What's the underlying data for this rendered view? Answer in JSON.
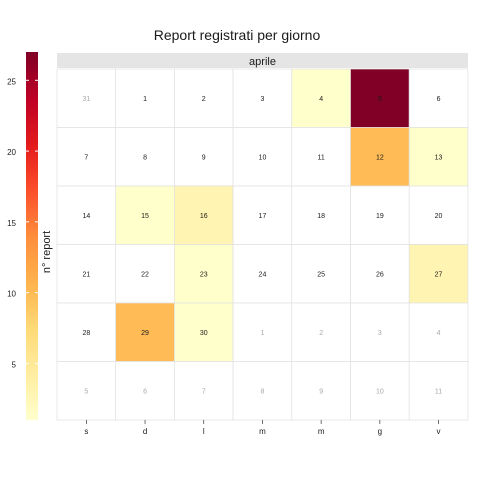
{
  "chart_data": {
    "type": "heatmap",
    "title": "Report registrati per giorno",
    "month_strip": "aprile",
    "weekday_labels": [
      "s",
      "d",
      "l",
      "m",
      "m",
      "g",
      "v"
    ],
    "color_scale": {
      "title": "n° report",
      "min": 1,
      "max": 27,
      "ticks": [
        5,
        10,
        15,
        20,
        25
      ],
      "colors": [
        "#ffffcc",
        "#ffeda0",
        "#fed976",
        "#feb24c",
        "#fd8d3c",
        "#fc4e2a",
        "#e31a1c",
        "#bd0026",
        "#800026"
      ]
    },
    "colors": {
      "no_report": "#ffffff",
      "grid": "#e0e0e0",
      "strip_bg": "#e5e5e5",
      "in_month_text": "#1a1a1a",
      "out_month_text": "#a8a8a8"
    },
    "weeks": [
      [
        {
          "day": "31",
          "in_month": false,
          "value": null
        },
        {
          "day": "1",
          "in_month": true,
          "value": null
        },
        {
          "day": "2",
          "in_month": true,
          "value": null
        },
        {
          "day": "3",
          "in_month": true,
          "value": null
        },
        {
          "day": "4",
          "in_month": true,
          "value": 1
        },
        {
          "day": "5",
          "in_month": true,
          "value": 27
        },
        {
          "day": "6",
          "in_month": true,
          "value": null
        }
      ],
      [
        {
          "day": "7",
          "in_month": true,
          "value": null
        },
        {
          "day": "8",
          "in_month": true,
          "value": null
        },
        {
          "day": "9",
          "in_month": true,
          "value": null
        },
        {
          "day": "10",
          "in_month": true,
          "value": null
        },
        {
          "day": "11",
          "in_month": true,
          "value": null
        },
        {
          "day": "12",
          "in_month": true,
          "value": 10
        },
        {
          "day": "13",
          "in_month": true,
          "value": 1
        }
      ],
      [
        {
          "day": "14",
          "in_month": true,
          "value": null
        },
        {
          "day": "15",
          "in_month": true,
          "value": 1
        },
        {
          "day": "16",
          "in_month": true,
          "value": 3
        },
        {
          "day": "17",
          "in_month": true,
          "value": null
        },
        {
          "day": "18",
          "in_month": true,
          "value": null
        },
        {
          "day": "19",
          "in_month": true,
          "value": null
        },
        {
          "day": "20",
          "in_month": true,
          "value": null
        }
      ],
      [
        {
          "day": "21",
          "in_month": true,
          "value": null
        },
        {
          "day": "22",
          "in_month": true,
          "value": null
        },
        {
          "day": "23",
          "in_month": true,
          "value": 1
        },
        {
          "day": "24",
          "in_month": true,
          "value": null
        },
        {
          "day": "25",
          "in_month": true,
          "value": null
        },
        {
          "day": "26",
          "in_month": true,
          "value": null
        },
        {
          "day": "27",
          "in_month": true,
          "value": 3
        }
      ],
      [
        {
          "day": "28",
          "in_month": true,
          "value": null
        },
        {
          "day": "29",
          "in_month": true,
          "value": 10
        },
        {
          "day": "30",
          "in_month": true,
          "value": 1
        },
        {
          "day": "1",
          "in_month": false,
          "value": null
        },
        {
          "day": "2",
          "in_month": false,
          "value": null
        },
        {
          "day": "3",
          "in_month": false,
          "value": null
        },
        {
          "day": "4",
          "in_month": false,
          "value": null
        }
      ],
      [
        {
          "day": "5",
          "in_month": false,
          "value": null
        },
        {
          "day": "6",
          "in_month": false,
          "value": null
        },
        {
          "day": "7",
          "in_month": false,
          "value": null
        },
        {
          "day": "8",
          "in_month": false,
          "value": null
        },
        {
          "day": "9",
          "in_month": false,
          "value": null
        },
        {
          "day": "10",
          "in_month": false,
          "value": null
        },
        {
          "day": "11",
          "in_month": false,
          "value": null
        }
      ]
    ]
  }
}
